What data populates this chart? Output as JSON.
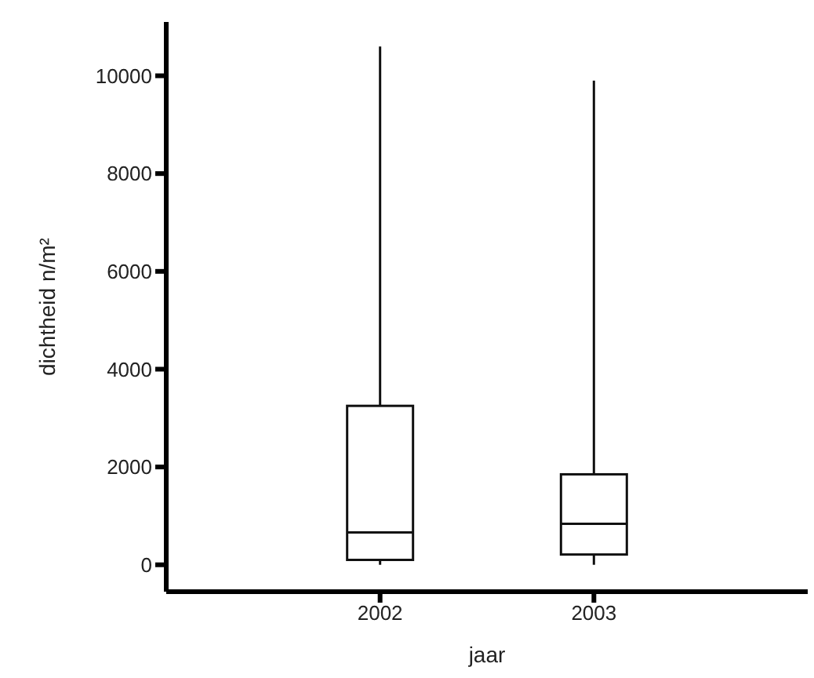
{
  "chart_data": {
    "type": "box",
    "xlabel": "jaar",
    "ylabel": "dichtheid n/m²",
    "categories": [
      "2002",
      "2003"
    ],
    "boxes": [
      {
        "low": 0,
        "q1": 100,
        "median": 660,
        "q3": 3250,
        "high": 10600
      },
      {
        "low": 0,
        "q1": 210,
        "median": 840,
        "q3": 1850,
        "high": 9900
      }
    ],
    "ylim": [
      -550,
      11100
    ],
    "yticks": [
      0,
      2000,
      4000,
      6000,
      8000,
      10000
    ],
    "grid": false,
    "legend": false
  }
}
